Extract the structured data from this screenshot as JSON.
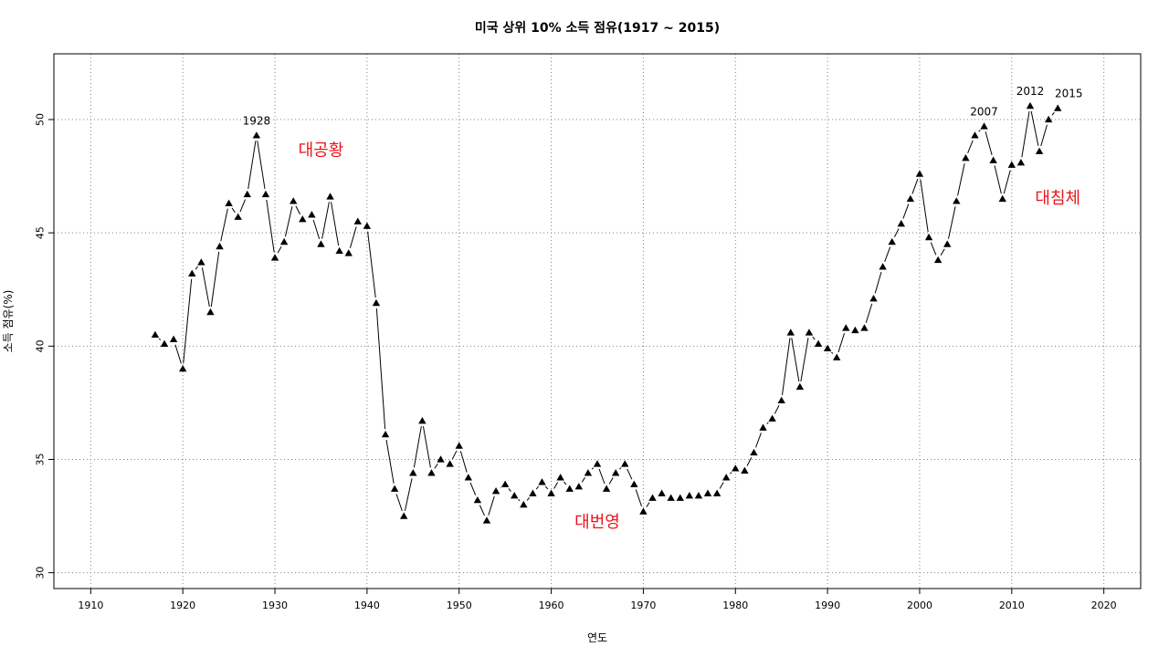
{
  "chart_data": {
    "type": "line",
    "title": "미국 상위 10% 소득 점유(1917 ~ 2015)",
    "xlabel": "연도",
    "ylabel": "소득 점유(%)",
    "xlim": [
      1906,
      2024
    ],
    "ylim": [
      29.3,
      52.9
    ],
    "xticks": [
      1910,
      1920,
      1930,
      1940,
      1950,
      1960,
      1970,
      1980,
      1990,
      2000,
      2010,
      2020
    ],
    "yticks": [
      30,
      35,
      40,
      45,
      50
    ],
    "grid": true,
    "marker": "triangle",
    "colors": {
      "series": "#000000",
      "annotation": "#e8141c",
      "grid": "#808080"
    },
    "series": [
      {
        "x": [
          1917,
          1918,
          1919,
          1920,
          1921,
          1922,
          1923,
          1924,
          1925,
          1926,
          1927,
          1928,
          1929,
          1930,
          1931,
          1932,
          1933,
          1934,
          1935,
          1936,
          1937,
          1938,
          1939,
          1940,
          1941,
          1942,
          1943,
          1944,
          1945,
          1946,
          1947,
          1948,
          1949,
          1950,
          1951,
          1952,
          1953,
          1954,
          1955,
          1956,
          1957,
          1958,
          1959,
          1960,
          1961,
          1962,
          1963,
          1964,
          1965,
          1966,
          1967,
          1968,
          1969,
          1970,
          1971,
          1972,
          1973,
          1974,
          1975,
          1976,
          1977,
          1978,
          1979,
          1980,
          1981,
          1982,
          1983,
          1984,
          1985,
          1986,
          1987,
          1988,
          1989,
          1990,
          1991,
          1992,
          1993,
          1994,
          1995,
          1996,
          1997,
          1998,
          1999,
          2000,
          2001,
          2002,
          2003,
          2004,
          2005,
          2006,
          2007,
          2008,
          2009,
          2010,
          2011,
          2012,
          2013,
          2014,
          2015
        ],
        "values": [
          40.5,
          40.1,
          40.3,
          39.0,
          43.2,
          43.7,
          41.5,
          44.4,
          46.3,
          45.7,
          46.7,
          49.3,
          46.7,
          43.9,
          44.6,
          46.4,
          45.6,
          45.8,
          44.5,
          46.6,
          44.2,
          44.1,
          45.5,
          45.3,
          41.9,
          36.1,
          33.7,
          32.5,
          34.4,
          36.7,
          34.4,
          35.0,
          34.8,
          35.6,
          34.2,
          33.2,
          32.3,
          33.6,
          33.9,
          33.4,
          33.0,
          33.5,
          34.0,
          33.5,
          34.2,
          33.7,
          33.8,
          34.4,
          34.8,
          33.7,
          34.4,
          34.8,
          33.9,
          32.7,
          33.3,
          33.5,
          33.3,
          33.3,
          33.4,
          33.4,
          33.5,
          33.5,
          34.2,
          34.6,
          34.5,
          35.3,
          36.4,
          36.8,
          37.6,
          40.6,
          38.2,
          40.6,
          40.1,
          39.9,
          39.5,
          40.8,
          40.7,
          40.8,
          42.1,
          43.5,
          44.6,
          45.4,
          46.5,
          47.6,
          44.8,
          43.8,
          44.5,
          46.4,
          48.3,
          49.3,
          49.7,
          48.2,
          46.5,
          48.0,
          48.1,
          50.6,
          48.6,
          50.0,
          50.5
        ]
      }
    ],
    "point_labels": [
      {
        "x": 1928,
        "y": 49.3,
        "text": "1928"
      },
      {
        "x": 2007,
        "y": 49.7,
        "text": "2007"
      },
      {
        "x": 2012,
        "y": 50.6,
        "text": "2012"
      },
      {
        "x": 2015,
        "y": 50.5,
        "text": "2015"
      }
    ],
    "annotations": [
      {
        "x": 1935,
        "y": 48.4,
        "text": "대공황"
      },
      {
        "x": 1965,
        "y": 32.0,
        "text": "대번영"
      },
      {
        "x": 2015,
        "y": 46.3,
        "text": "대침체"
      }
    ]
  }
}
